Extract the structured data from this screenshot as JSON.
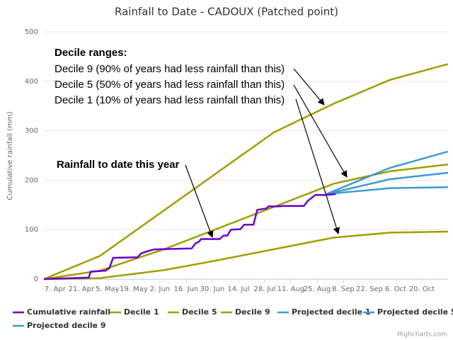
{
  "chart_data": {
    "type": "line",
    "title": "Rainfall to Date - CADOUX (Patched point)",
    "y_label": "Cumulative rainfall (mm)",
    "xlim": [
      0,
      216
    ],
    "ylim": [
      0,
      500
    ],
    "yticks": [
      0,
      100,
      200,
      300,
      400,
      500
    ],
    "xticks": [
      {
        "value": 6,
        "label": "7. Apr"
      },
      {
        "value": 20,
        "label": "21. Apr"
      },
      {
        "value": 34,
        "label": "5. May"
      },
      {
        "value": 48,
        "label": "19. May"
      },
      {
        "value": 62,
        "label": "2. Jun"
      },
      {
        "value": 76,
        "label": "16. Jun"
      },
      {
        "value": 90,
        "label": "30. Jun"
      },
      {
        "value": 104,
        "label": "14. Jul"
      },
      {
        "value": 118,
        "label": "28. Jul"
      },
      {
        "value": 132,
        "label": "11. Aug"
      },
      {
        "value": 146,
        "label": "25. Aug"
      },
      {
        "value": 160,
        "label": "8. Sep"
      },
      {
        "value": 174,
        "label": "22. Sep"
      },
      {
        "value": 188,
        "label": "6. Oct"
      },
      {
        "value": 202,
        "label": "20. Oct"
      }
    ],
    "grid": true,
    "series": [
      {
        "name": "Cumulative rainfall",
        "color": "#6a00c8",
        "x": [
          0,
          24,
          25,
          33,
          35,
          37,
          50,
          52,
          56,
          59,
          69,
          79,
          81,
          83,
          84,
          94,
          96,
          98,
          100,
          105,
          107,
          112,
          114,
          119,
          120,
          125,
          128,
          139,
          141,
          145,
          151,
          156
        ],
        "values": [
          0,
          3,
          15,
          17,
          22,
          43,
          44,
          52,
          57,
          60,
          61,
          62,
          72,
          76,
          81,
          81,
          88,
          88,
          100,
          101,
          110,
          110,
          140,
          143,
          147,
          147,
          148,
          148,
          158,
          170,
          170,
          172
        ]
      },
      {
        "name": "Decile 1",
        "color": "#9e9e00",
        "x": [
          0,
          30,
          64,
          90,
          155,
          185,
          216
        ],
        "values": [
          0,
          2,
          18,
          36,
          84,
          94,
          96
        ]
      },
      {
        "name": "Decile 5",
        "color": "#9e9e00",
        "x": [
          0,
          30,
          64,
          155,
          185,
          216
        ],
        "values": [
          0,
          17,
          60,
          193,
          218,
          232
        ]
      },
      {
        "name": "Decile 9",
        "color": "#9e9e00",
        "x": [
          0,
          30,
          123,
          155,
          185,
          216
        ],
        "values": [
          0,
          47,
          297,
          355,
          403,
          435
        ]
      },
      {
        "name": "Projected decile 1",
        "color": "#3d9ad1",
        "x": [
          151,
          185,
          216
        ],
        "values": [
          172,
          184,
          186
        ]
      },
      {
        "name": "Projected decile 5",
        "color": "#3d9ad1",
        "x": [
          151,
          185,
          216
        ],
        "values": [
          172,
          202,
          215
        ]
      },
      {
        "name": "Projected decile 9",
        "color": "#3d9ad1",
        "x": [
          151,
          185,
          216
        ],
        "values": [
          172,
          225,
          258
        ]
      }
    ],
    "annotations": [
      "Decile ranges:",
      "Decile 9 (90% of years had less rainfall than this)",
      "Decile 5 (50% of years had less rainfall than this)",
      "Decile 1 (10% of years had less rainfall than this)",
      "Rainfall to date this year"
    ],
    "credits": "Highcharts.com"
  }
}
